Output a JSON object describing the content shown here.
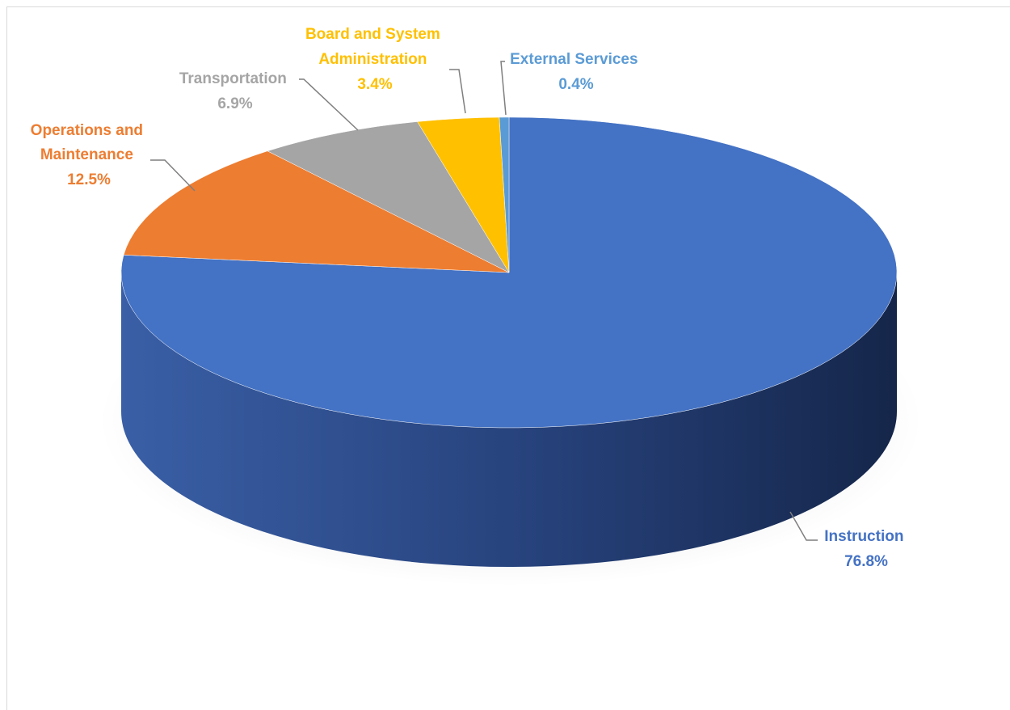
{
  "chart_data": {
    "type": "pie",
    "title": "",
    "slices": [
      {
        "name": "Instruction",
        "value": 76.8,
        "label": "76.8%",
        "color": "#4472C4"
      },
      {
        "name": "Operations and Maintenance",
        "value": 12.5,
        "label": "12.5%",
        "color": "#ED7D31"
      },
      {
        "name": "Transportation",
        "value": 6.9,
        "label": "6.9%",
        "color": "#A5A5A5"
      },
      {
        "name": "Board and System Administration",
        "value": 3.4,
        "label": "3.4%",
        "color": "#FFC000"
      },
      {
        "name": "External Services",
        "value": 0.4,
        "label": "0.4%",
        "color": "#5B9BD5"
      }
    ],
    "label_texts": {
      "instruction": [
        "Instruction",
        "76.8%"
      ],
      "operations": [
        "Operations and",
        "Maintenance",
        "12.5%"
      ],
      "transportation": [
        "Transportation",
        "6.9%"
      ],
      "board": [
        "Board and System",
        "Administration",
        "3.4%"
      ],
      "external": [
        "External Services",
        "0.4%"
      ]
    },
    "style": "3d-pie",
    "legend": "none"
  }
}
